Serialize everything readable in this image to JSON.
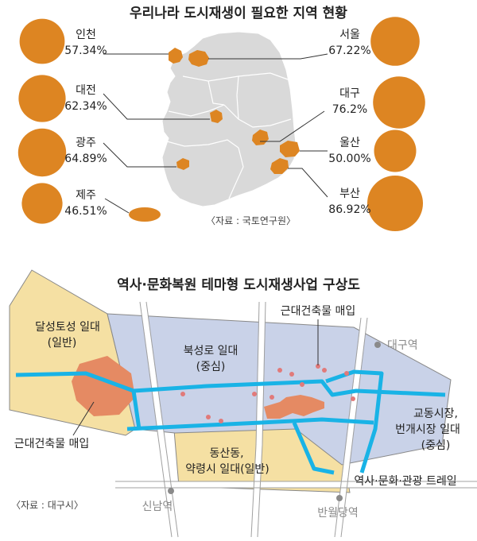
{
  "top": {
    "title": "우리나라 도시재생이 필요한 지역 현황",
    "source": "〈자료 : 국토연구원〉",
    "regions": [
      {
        "id": "incheon",
        "name": "인천",
        "value": "57.34%",
        "pct": 57.34
      },
      {
        "id": "seoul",
        "name": "서울",
        "value": "67.22%",
        "pct": 67.22
      },
      {
        "id": "daejeon",
        "name": "대전",
        "value": "62.34%",
        "pct": 62.34
      },
      {
        "id": "daegu",
        "name": "대구",
        "value": "76.2%",
        "pct": 76.2
      },
      {
        "id": "gwangju",
        "name": "광주",
        "value": "64.89%",
        "pct": 64.89
      },
      {
        "id": "ulsan",
        "name": "울산",
        "value": "50.00%",
        "pct": 50.0
      },
      {
        "id": "jeju",
        "name": "제주",
        "value": "46.51%",
        "pct": 46.51
      },
      {
        "id": "busan",
        "name": "부산",
        "value": "86.92%",
        "pct": 86.92
      }
    ]
  },
  "bottom": {
    "title": "역사·문화복원 테마형 도시재생사업 구상도",
    "source": "〈자료 : 대구시〉",
    "labels": {
      "dalseong": "달성토성 일대",
      "dalseong_sub": "(일반)",
      "bukseong": "북성로 일대",
      "bukseong_sub": "(중심)",
      "modern_top": "근대건축물 매입",
      "modern_left": "근대건축물 매입",
      "daegu_station": "대구역",
      "gyodong1": "교동시장,",
      "gyodong2": "번개시장 일대",
      "gyodong_sub": "(중심)",
      "dongsan1": "동산동,",
      "dongsan2": "약령시 일대(일반)",
      "trail": "역사·문화·관광 트레일",
      "sinnam": "신남역",
      "banwoldang": "반월당역"
    }
  },
  "colors": {
    "orange": "#dd8522",
    "map_gray": "#d9d9d9",
    "blue_zone": "#c9d2e8",
    "yellow_zone": "#f5e0a3",
    "salmon": "#e58a63",
    "trail_blue": "#19b3e6",
    "dot_pink": "#e17a7a"
  }
}
